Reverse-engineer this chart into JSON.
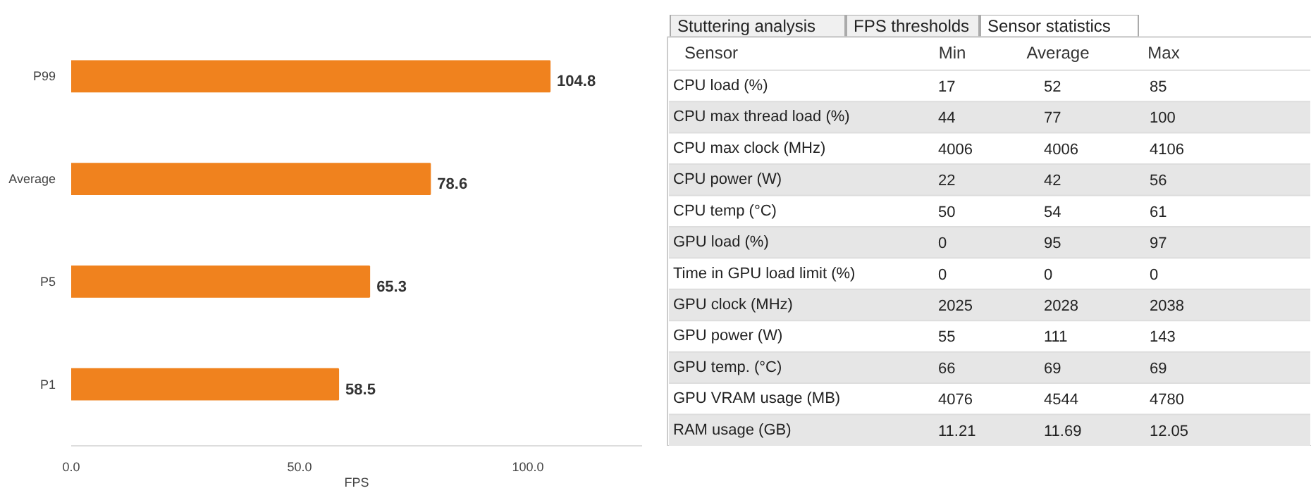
{
  "chart_data": [
    {
      "type": "bar",
      "orientation": "horizontal",
      "categories": [
        "P99",
        "Average",
        "P5",
        "P1"
      ],
      "values": [
        104.8,
        78.6,
        65.3,
        58.5
      ],
      "color": "#f0821e",
      "data_labels": true,
      "xlabel": "FPS",
      "xlim": [
        0,
        125
      ],
      "xticks": [
        {
          "value": 0,
          "label": "0.0"
        },
        {
          "value": 50,
          "label": "50.0"
        },
        {
          "value": 100,
          "label": "100.0"
        }
      ],
      "grid": false
    },
    {
      "type": "other",
      "annotations": [
        "Stuttering analysis",
        "FPS thresholds",
        "Sensor statistics"
      ],
      "xlabel": "Sensor",
      "categories": [
        "Min",
        "Average",
        "Max"
      ],
      "y_categories": [
        "CPU load (%)",
        "CPU max thread load (%)",
        "CPU max clock (MHz)",
        "CPU power (W)",
        "CPU temp (°C)",
        "GPU load (%)",
        "Time in GPU load limit (%)",
        "GPU clock (MHz)",
        "GPU power (W)",
        "GPU temp. (°C)",
        "GPU VRAM usage (MB)",
        "RAM usage (GB)"
      ],
      "cell_labels": [
        [
          "17",
          "52",
          "85"
        ],
        [
          "44",
          "77",
          "100"
        ],
        [
          "4006",
          "4006",
          "4106"
        ],
        [
          "22",
          "42",
          "56"
        ],
        [
          "50",
          "54",
          "61"
        ],
        [
          "0",
          "95",
          "97"
        ],
        [
          "0",
          "0",
          "0"
        ],
        [
          "2025",
          "2028",
          "2038"
        ],
        [
          "55",
          "111",
          "143"
        ],
        [
          "66",
          "69",
          "69"
        ],
        [
          "4076",
          "4544",
          "4780"
        ],
        [
          "11.21",
          "11.69",
          "12.05"
        ]
      ]
    }
  ]
}
